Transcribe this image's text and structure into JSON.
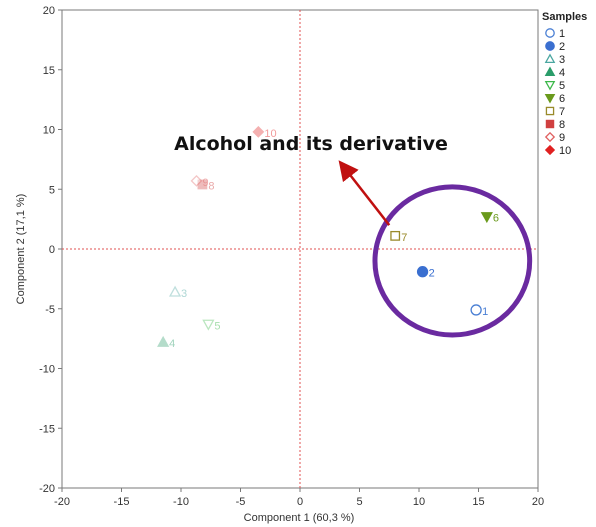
{
  "chart_data": {
    "type": "scatter",
    "title": "",
    "xlabel": "Component 1  (60,3 %)",
    "ylabel": "Component 2  (17,1 %)",
    "xlim": [
      -20,
      20
    ],
    "ylim": [
      -20,
      20
    ],
    "x_ticks": [
      -20,
      -15,
      -10,
      -5,
      0,
      5,
      10,
      15,
      20
    ],
    "y_ticks": [
      -20,
      -15,
      -10,
      -5,
      0,
      5,
      10,
      15,
      20
    ],
    "reference_lines": {
      "x": 0,
      "y": 0,
      "color": "#e05050",
      "style": "dotted"
    },
    "grid": false,
    "legend": {
      "title": "Samples",
      "position": "right"
    },
    "series": [
      {
        "name": "1",
        "x": 14.8,
        "y": -5.1,
        "marker": "circle-open",
        "color": "#4a7fd4",
        "faded": false
      },
      {
        "name": "2",
        "x": 10.3,
        "y": -1.9,
        "marker": "circle",
        "color": "#3a6fd0",
        "faded": false
      },
      {
        "name": "3",
        "x": -10.5,
        "y": -3.6,
        "marker": "triangle-open",
        "color": "#4aa6a0",
        "faded": true
      },
      {
        "name": "4",
        "x": -11.5,
        "y": -7.8,
        "marker": "triangle",
        "color": "#2a9d6a",
        "faded": true
      },
      {
        "name": "5",
        "x": -7.7,
        "y": -6.3,
        "marker": "triangle-down-open",
        "color": "#3cb84a",
        "faded": true
      },
      {
        "name": "6",
        "x": 15.7,
        "y": 2.7,
        "marker": "triangle-down",
        "color": "#6a9a1c",
        "faded": false
      },
      {
        "name": "7",
        "x": 8.0,
        "y": 1.1,
        "marker": "square-open",
        "color": "#9a8a2a",
        "faded": false
      },
      {
        "name": "8",
        "x": -8.2,
        "y": 5.4,
        "marker": "square",
        "color": "#d04040",
        "faded": true
      },
      {
        "name": "9",
        "x": -8.7,
        "y": 5.7,
        "marker": "diamond-open",
        "color": "#e06060",
        "faded": true
      },
      {
        "name": "10",
        "x": -3.5,
        "y": 9.8,
        "marker": "diamond",
        "color": "#e02020",
        "faded": true
      }
    ],
    "annotations": [
      {
        "text": "Alcohol and its derivative",
        "arrow_from": [
          7.5,
          2.0
        ],
        "arrow_to": [
          3.5,
          7.1
        ],
        "color": "#c01010"
      }
    ],
    "highlight_ellipse": {
      "center": [
        12.8,
        -1.0
      ],
      "rx": 6.5,
      "ry": 6.2,
      "color": "#6a2aa0"
    }
  }
}
